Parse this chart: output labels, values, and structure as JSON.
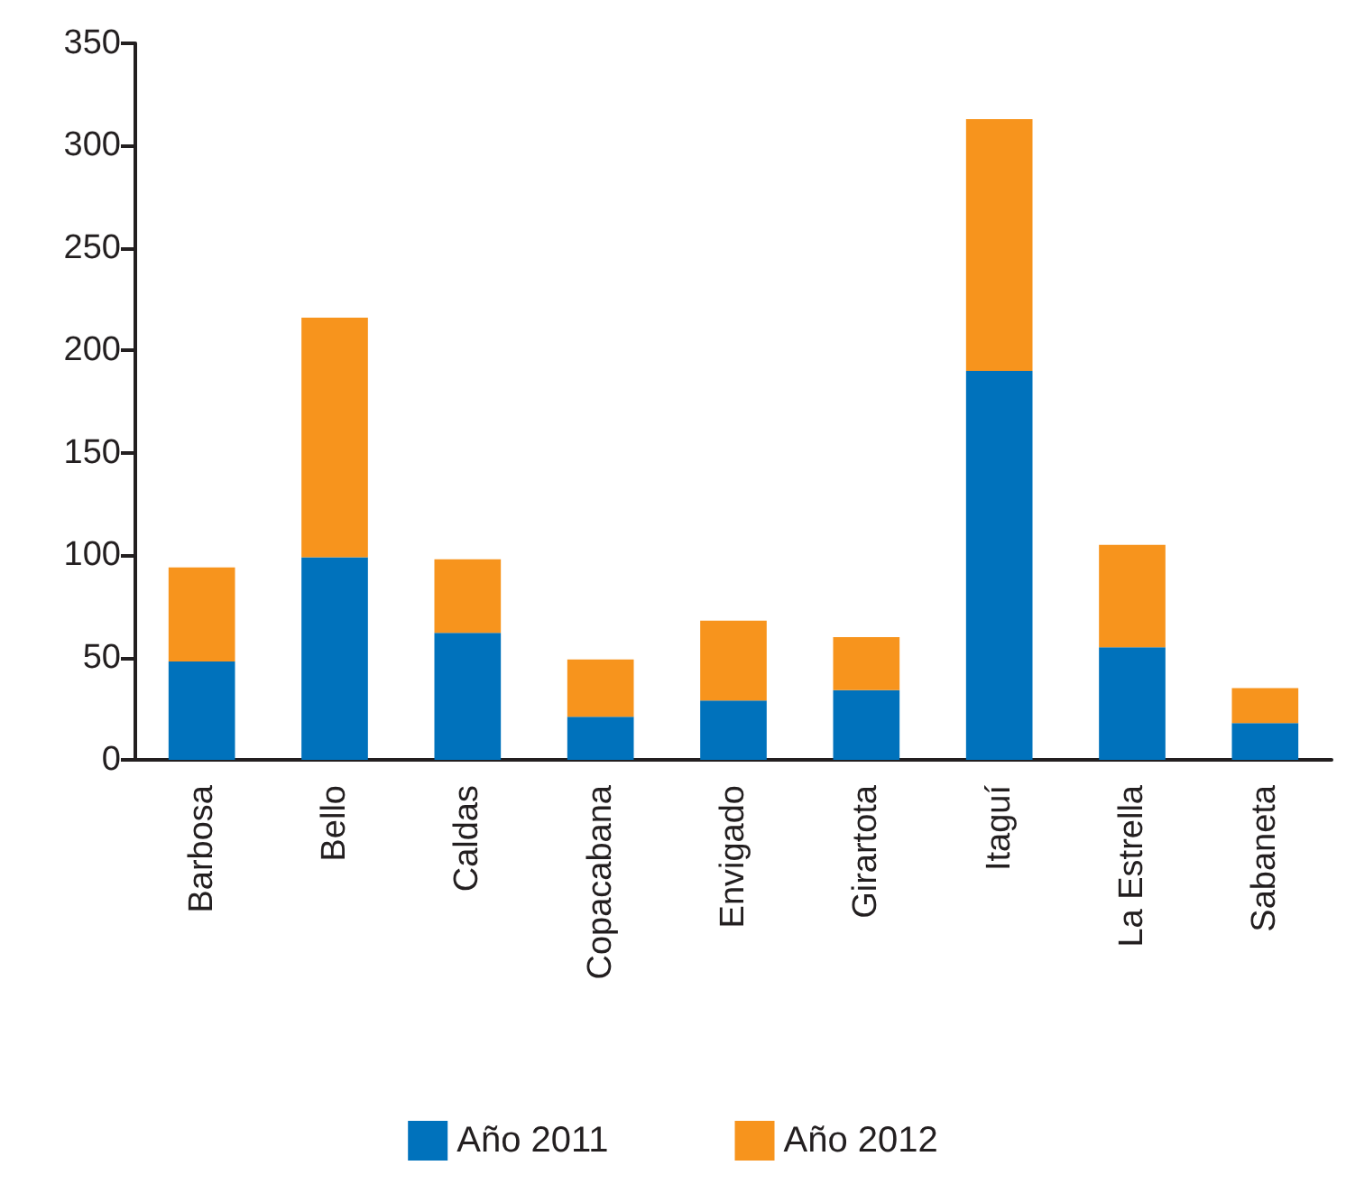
{
  "chart_data": {
    "type": "bar",
    "stacked": true,
    "categories": [
      "Barbosa",
      "Bello",
      "Caldas",
      "Copacabana",
      "Envigado",
      "Girartota",
      "Itaguí",
      "La Estrella",
      "Sabaneta"
    ],
    "series": [
      {
        "name": "Año 2011",
        "color": "#0072bc",
        "values": [
          48,
          99,
          62,
          21,
          29,
          34,
          190,
          55,
          18
        ]
      },
      {
        "name": "Año 2012",
        "color": "#f7941d",
        "values": [
          46,
          117,
          36,
          28,
          39,
          26,
          123,
          50,
          17
        ]
      }
    ],
    "ylim": [
      0,
      350
    ],
    "yticks": [
      0,
      50,
      100,
      150,
      200,
      250,
      300,
      350
    ],
    "grid": false,
    "legend": "bottom"
  }
}
